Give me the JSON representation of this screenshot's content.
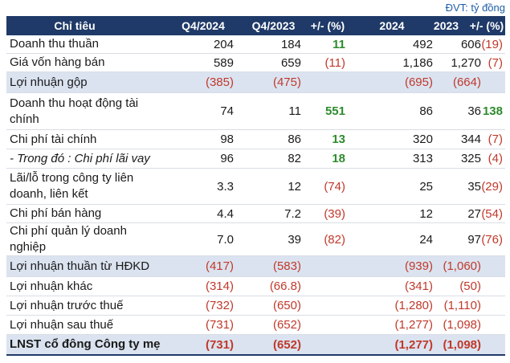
{
  "unit_note": "ĐVT: tỷ đồng",
  "headers": [
    "Chỉ tiêu",
    "Q4/2024",
    "Q4/2023",
    "+/- (%)",
    "2024",
    "2023",
    "+/- (%)"
  ],
  "rows": [
    {
      "label": "Doanh thu thuần",
      "q4_2024": "204",
      "q4_2023": "184",
      "q_change": "11",
      "y2024": "492",
      "y2023": "606",
      "y_change": "(19)"
    },
    {
      "label": "Giá vốn hàng bán",
      "q4_2024": "589",
      "q4_2023": "659",
      "q_change": "(11)",
      "y2024": "1,186",
      "y2023": "1,270",
      "y_change": "(7)"
    },
    {
      "label": "Lợi nhuận gộp",
      "q4_2024": "(385)",
      "q4_2023": "(475)",
      "q_change": "",
      "y2024": "(695)",
      "y2023": "(664)",
      "y_change": ""
    },
    {
      "label": "Doanh thu hoạt động tài chính",
      "q4_2024": "74",
      "q4_2023": "11",
      "q_change": "551",
      "y2024": "86",
      "y2023": "36",
      "y_change": "138"
    },
    {
      "label": "Chi phí tài chính",
      "q4_2024": "98",
      "q4_2023": "86",
      "q_change": "13",
      "y2024": "320",
      "y2023": "344",
      "y_change": "(7)"
    },
    {
      "label": "- Trong đó : Chi phí lãi vay",
      "q4_2024": "96",
      "q4_2023": "82",
      "q_change": "18",
      "y2024": "313",
      "y2023": "325",
      "y_change": "(4)"
    },
    {
      "label": "Lãi/lỗ trong công ty liên doanh, liên kết",
      "q4_2024": "3.3",
      "q4_2023": "12",
      "q_change": "(74)",
      "y2024": "25",
      "y2023": "35",
      "y_change": "(29)"
    },
    {
      "label": "Chi phí bán hàng",
      "q4_2024": "4.4",
      "q4_2023": "7.2",
      "q_change": "(39)",
      "y2024": "12",
      "y2023": "27",
      "y_change": "(54)"
    },
    {
      "label": "Chi phí quản lý doanh nghiệp",
      "q4_2024": "7.0",
      "q4_2023": "39",
      "q_change": "(82)",
      "y2024": "24",
      "y2023": "97",
      "y_change": "(76)"
    },
    {
      "label": "Lợi nhuận thuần từ HĐKD",
      "q4_2024": "(417)",
      "q4_2023": "(583)",
      "q_change": "",
      "y2024": "(939)",
      "y2023": "(1,060)",
      "y_change": ""
    },
    {
      "label": "Lợi nhuận khác",
      "q4_2024": "(314)",
      "q4_2023": "(66.8)",
      "q_change": "",
      "y2024": "(341)",
      "y2023": "(50)",
      "y_change": ""
    },
    {
      "label": "Lợi nhuận trước thuế",
      "q4_2024": "(732)",
      "q4_2023": "(650)",
      "q_change": "",
      "y2024": "(1,280)",
      "y2023": "(1,110)",
      "y_change": ""
    },
    {
      "label": "Lợi nhuận sau thuế",
      "q4_2024": "(731)",
      "q4_2023": "(652)",
      "q_change": "",
      "y2024": "(1,277)",
      "y2023": "(1,098)",
      "y_change": ""
    },
    {
      "label": "LNST cổ đông Công ty mẹ",
      "q4_2024": "(731)",
      "q4_2023": "(652)",
      "q_change": "",
      "y2024": "(1,277)",
      "y2023": "(1,098)",
      "y_change": ""
    }
  ],
  "colors": {
    "header_bg": "#1f3a68",
    "shade_bg": "#dbe3f0",
    "negative": "#c0392b",
    "positive": "#2e8b2e"
  }
}
